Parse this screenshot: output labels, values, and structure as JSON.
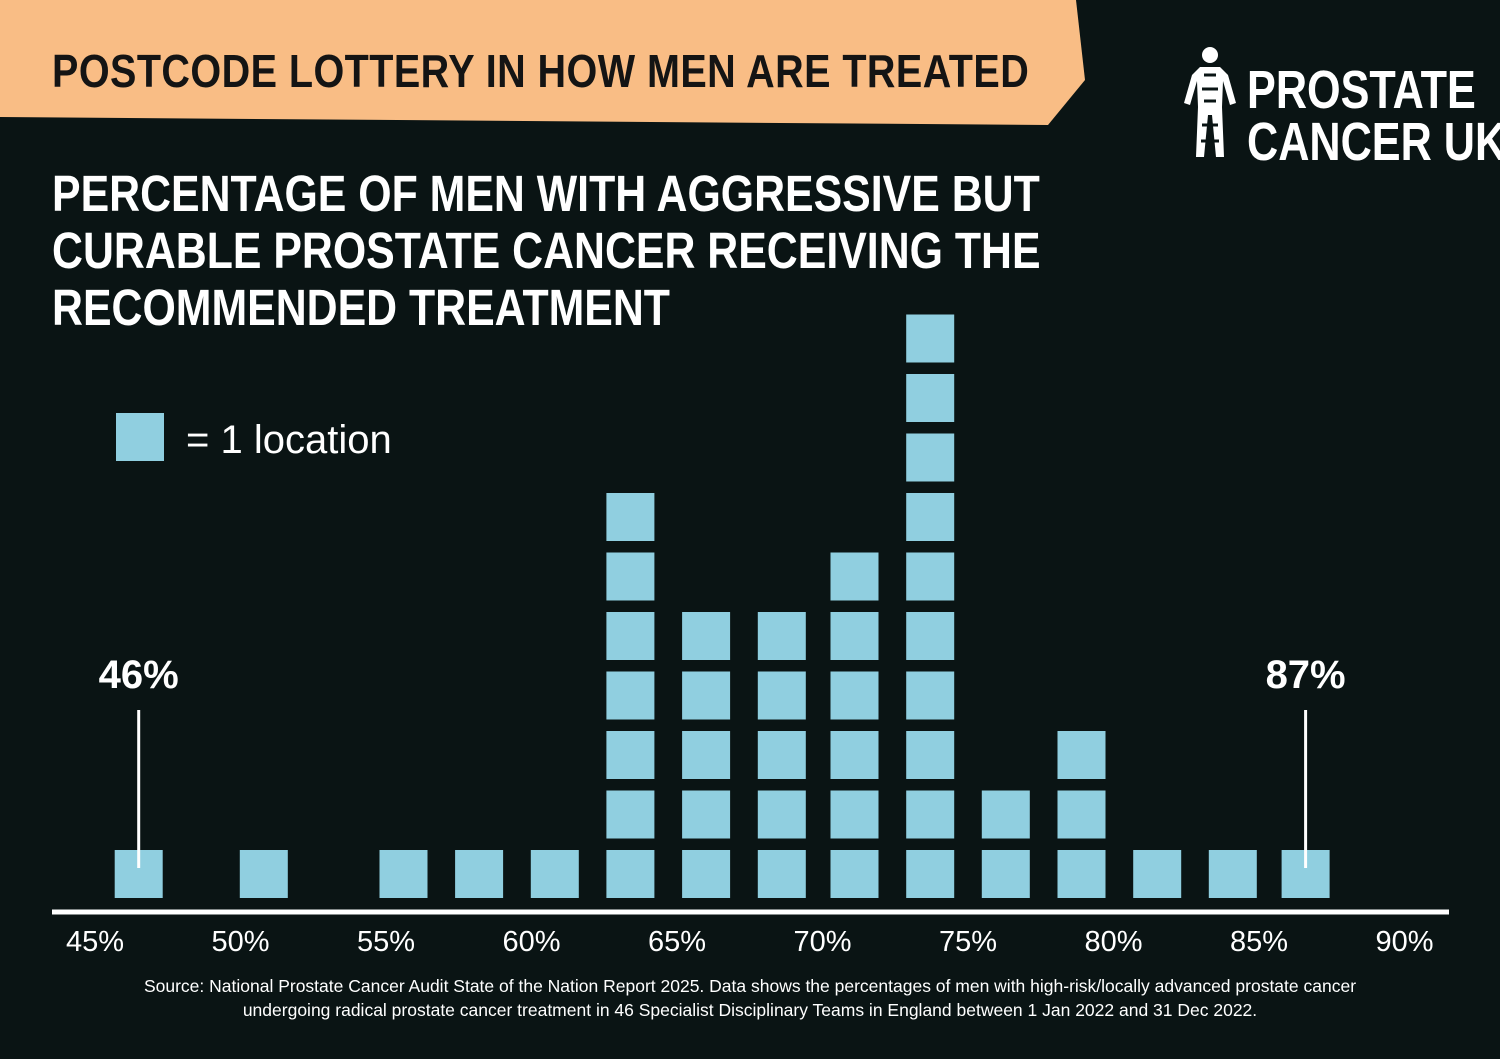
{
  "banner": {
    "text": "POSTCODE LOTTERY IN HOW MEN ARE TREATED"
  },
  "logo": {
    "line1": "PROSTATE",
    "line2": "CANCER UK"
  },
  "title": {
    "line1": "PERCENTAGE OF MEN WITH AGGRESSIVE BUT",
    "line2": "CURABLE PROSTATE CANCER RECEIVING THE",
    "line3": "RECOMMENDED TREATMENT"
  },
  "legend": {
    "label": "= 1 location"
  },
  "source": {
    "line1": "Source: National Prostate Cancer Audit State of the Nation Report 2025. Data shows the percentages of men with high-risk/locally advanced prostate cancer",
    "line2": "undergoing radical prostate cancer treatment in 46 Specialist Disciplinary Teams in England between 1 Jan 2022 and 31 Dec 2022."
  },
  "colors": {
    "background": "#0a1414",
    "banner": "#f9bd85",
    "square": "#90cfe0",
    "text": "#ffffff"
  },
  "chart_data": {
    "type": "histogram (unit squares)",
    "title": "PERCENTAGE OF MEN WITH AGGRESSIVE BUT CURABLE PROSTATE CANCER RECEIVING THE RECOMMENDED TREATMENT",
    "xlabel": "",
    "ylabel": "",
    "unit": "1 location",
    "xlim": [
      45,
      90
    ],
    "x_ticks": [
      "45%",
      "50%",
      "55%",
      "60%",
      "65%",
      "70%",
      "75%",
      "80%",
      "85%",
      "90%"
    ],
    "bins": [
      {
        "x": 46.5,
        "count": 1
      },
      {
        "x": 50.8,
        "count": 1
      },
      {
        "x": 55.6,
        "count": 1
      },
      {
        "x": 58.2,
        "count": 1
      },
      {
        "x": 60.8,
        "count": 1
      },
      {
        "x": 63.4,
        "count": 7
      },
      {
        "x": 66.0,
        "count": 5
      },
      {
        "x": 68.6,
        "count": 5
      },
      {
        "x": 71.1,
        "count": 6
      },
      {
        "x": 73.7,
        "count": 10
      },
      {
        "x": 76.3,
        "count": 2
      },
      {
        "x": 78.9,
        "count": 3
      },
      {
        "x": 81.5,
        "count": 1
      },
      {
        "x": 84.1,
        "count": 1
      },
      {
        "x": 86.6,
        "count": 1
      }
    ],
    "annotations": [
      {
        "label": "46%",
        "x": 46.5
      },
      {
        "label": "87%",
        "x": 86.6
      }
    ],
    "grid": false,
    "legend_position": "upper-left"
  }
}
